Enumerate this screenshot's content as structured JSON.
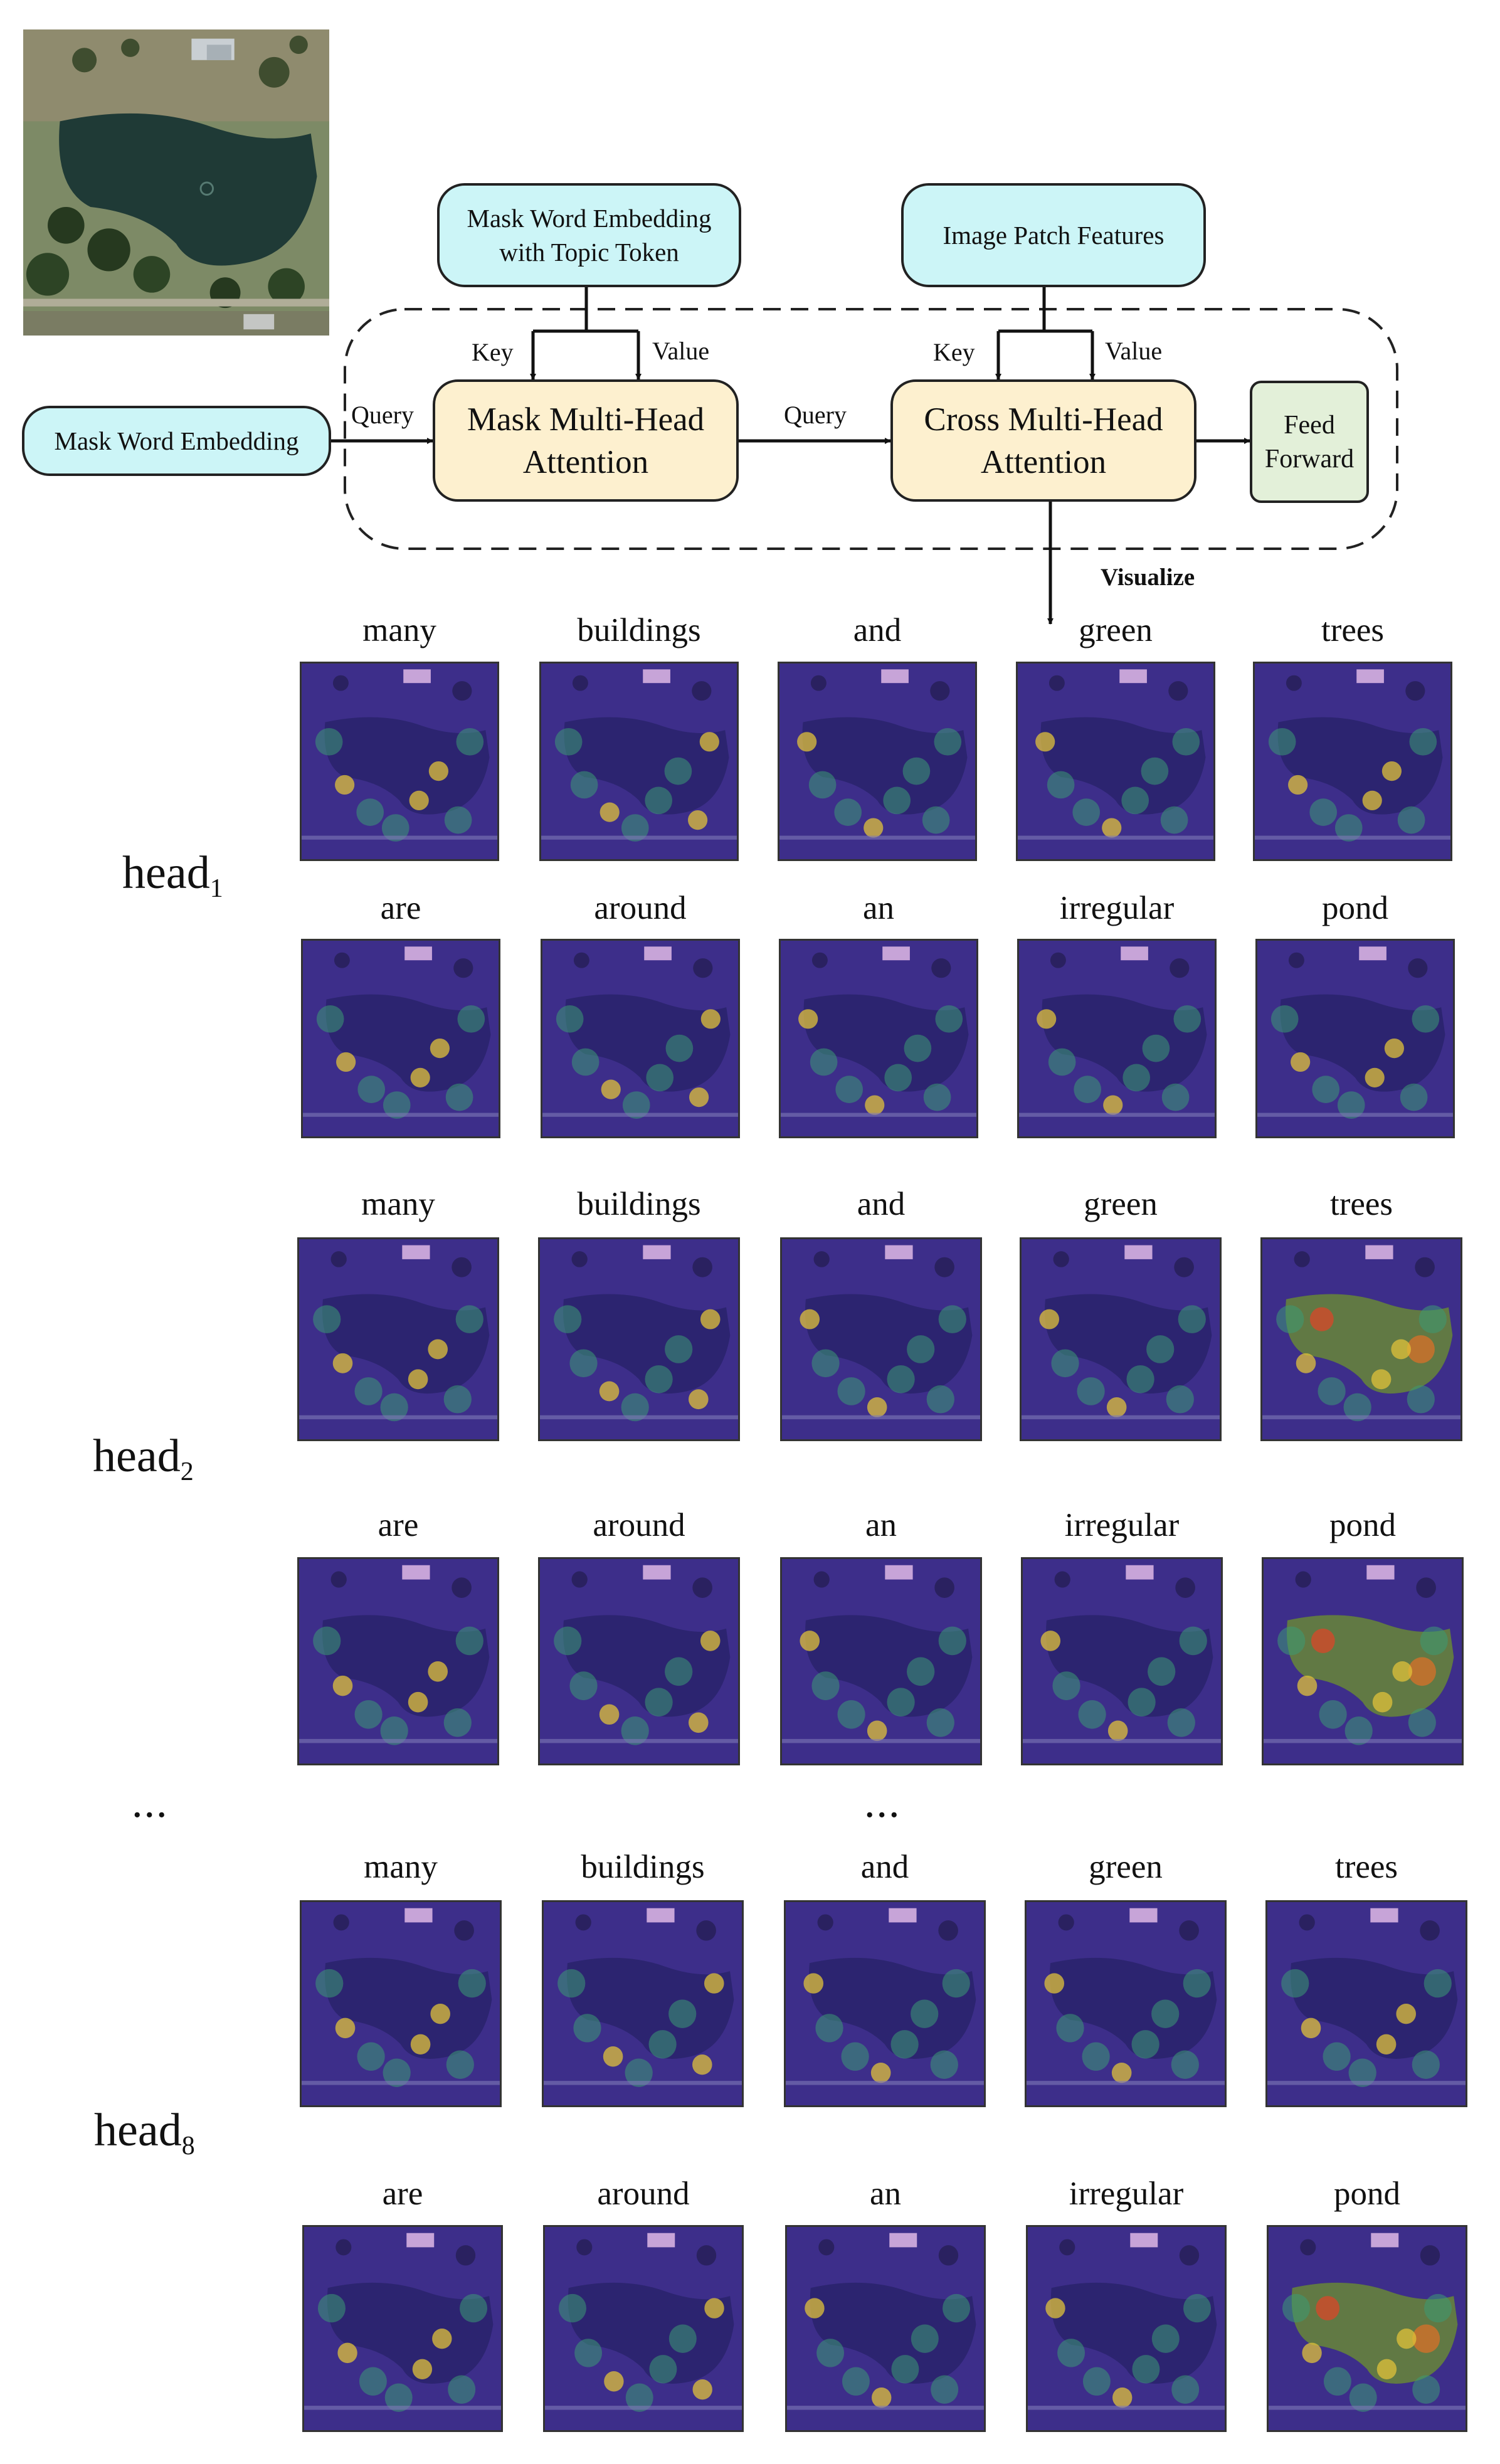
{
  "diagram": {
    "boxes": {
      "mask_word_embedding_topic": [
        "Mask Word Embedding",
        "with Topic Token"
      ],
      "image_patch_features": "Image Patch Features",
      "mask_word_embedding": "Mask Word Embedding",
      "mask_mha": [
        "Mask Multi-Head",
        "Attention"
      ],
      "cross_mha": [
        "Cross Multi-Head",
        "Attention"
      ],
      "feed_forward": [
        "Feed",
        "Forward"
      ]
    },
    "edge_labels": {
      "key": "Key",
      "value": "Value",
      "query": "Query",
      "visualize": "Visualize"
    }
  },
  "heads": [
    {
      "base": "head",
      "sub": "1"
    },
    {
      "base": "head",
      "sub": "2"
    },
    {
      "base": "head",
      "sub": "8"
    }
  ],
  "ellipsis": "...",
  "words_row_a": [
    "many",
    "buildings",
    "and",
    "green",
    "trees"
  ],
  "words_row_b": [
    "are",
    "around",
    "an",
    "irregular",
    "pond"
  ],
  "colors": {
    "cyan_box": "#ccf5f7",
    "attention_box": "#fdf0cf",
    "feed_forward_box": "#e3f0d9",
    "heatmap_base": "#3d2e8a"
  }
}
